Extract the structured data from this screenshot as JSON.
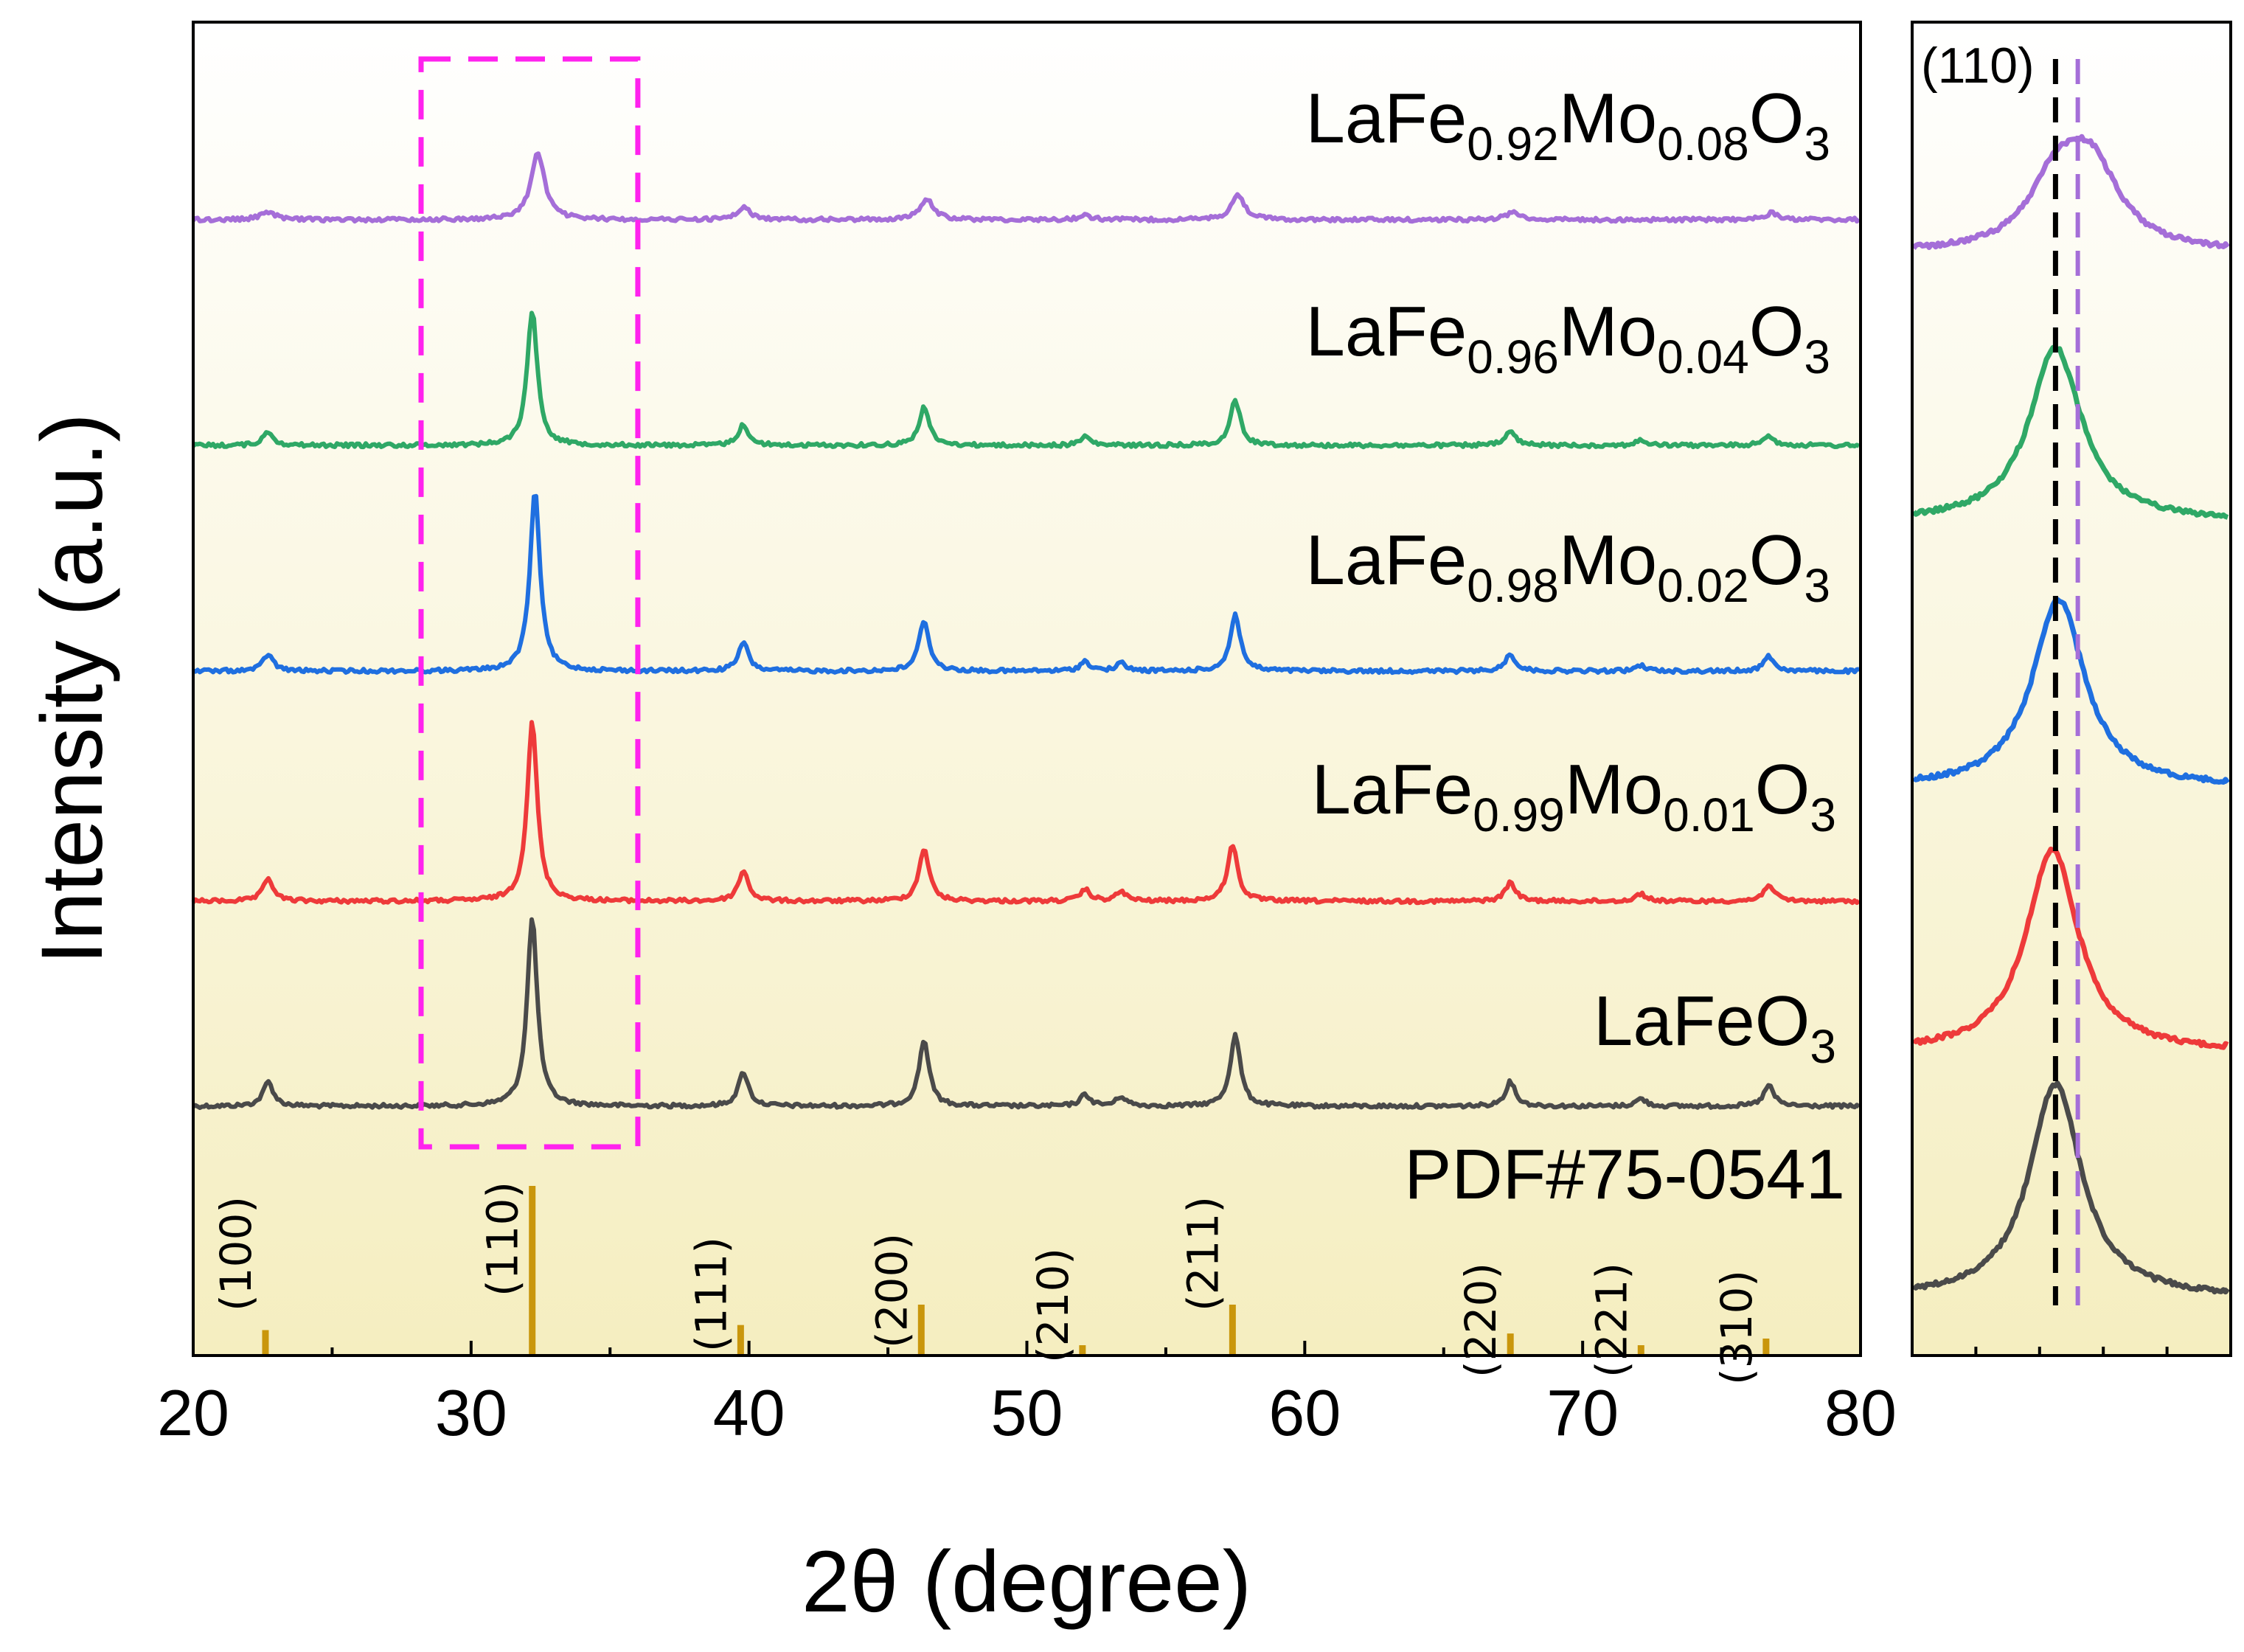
{
  "chart_data": {
    "type": "line",
    "title": "",
    "xlabel": "2θ (degree)",
    "ylabel": "Intensity (a.u.)",
    "xlim": [
      20,
      80
    ],
    "xticks": [
      "20",
      "30",
      "40",
      "50",
      "60",
      "70",
      "80"
    ],
    "series": [
      {
        "name": "LaFeO3",
        "label_main": "LaFeO",
        "label_parts": [
          {
            "t": "LaFeO",
            "sub": false
          },
          {
            "t": "3",
            "sub": true
          }
        ],
        "color": "#4a4a4a",
        "peaks": [
          [
            22.7,
            0.13
          ],
          [
            32.2,
            1.0
          ],
          [
            39.8,
            0.18
          ],
          [
            46.3,
            0.35
          ],
          [
            52.1,
            0.06
          ],
          [
            53.4,
            0.05
          ],
          [
            57.5,
            0.38
          ],
          [
            67.4,
            0.13
          ],
          [
            72.1,
            0.04
          ],
          [
            76.7,
            0.11
          ]
        ],
        "inset_peak": 32.2
      },
      {
        "name": "LaFe0.99Mo0.01O3",
        "label_parts": [
          {
            "t": "LaFe",
            "sub": false
          },
          {
            "t": "0.99",
            "sub": true
          },
          {
            "t": "Mo",
            "sub": false
          },
          {
            "t": "0.01",
            "sub": true
          },
          {
            "t": "O",
            "sub": false
          },
          {
            "t": "3",
            "sub": true
          }
        ],
        "color": "#ee3a3a",
        "peaks": [
          [
            22.7,
            0.12
          ],
          [
            32.2,
            0.95
          ],
          [
            39.8,
            0.16
          ],
          [
            46.3,
            0.28
          ],
          [
            52.1,
            0.06
          ],
          [
            53.4,
            0.05
          ],
          [
            57.4,
            0.3
          ],
          [
            67.4,
            0.1
          ],
          [
            72.1,
            0.04
          ],
          [
            76.7,
            0.09
          ]
        ],
        "inset_peak": 32.18
      },
      {
        "name": "LaFe0.98Mo0.02O3",
        "label_parts": [
          {
            "t": "LaFe",
            "sub": false
          },
          {
            "t": "0.98",
            "sub": true
          },
          {
            "t": "Mo",
            "sub": false
          },
          {
            "t": "0.02",
            "sub": true
          },
          {
            "t": "O",
            "sub": false
          },
          {
            "t": "3",
            "sub": true
          }
        ],
        "color": "#1f6fe0",
        "peaks": [
          [
            22.7,
            0.09
          ],
          [
            32.3,
            0.95
          ],
          [
            39.8,
            0.15
          ],
          [
            46.3,
            0.27
          ],
          [
            52.1,
            0.05
          ],
          [
            53.4,
            0.04
          ],
          [
            57.5,
            0.3
          ],
          [
            67.4,
            0.09
          ],
          [
            72.1,
            0.03
          ],
          [
            76.7,
            0.08
          ]
        ],
        "inset_peak": 32.22
      },
      {
        "name": "LaFe0.96Mo0.04O3",
        "label_parts": [
          {
            "t": "LaFe",
            "sub": false
          },
          {
            "t": "0.96",
            "sub": true
          },
          {
            "t": "Mo",
            "sub": false
          },
          {
            "t": "0.04",
            "sub": true
          },
          {
            "t": "O",
            "sub": false
          },
          {
            "t": "3",
            "sub": true
          }
        ],
        "color": "#2fa866",
        "peaks": [
          [
            22.7,
            0.08
          ],
          [
            32.2,
            0.78
          ],
          [
            39.8,
            0.12
          ],
          [
            46.3,
            0.22
          ],
          [
            52.1,
            0.05
          ],
          [
            57.5,
            0.26
          ],
          [
            67.4,
            0.08
          ],
          [
            72.1,
            0.03
          ],
          [
            76.7,
            0.06
          ]
        ],
        "inset_peak": 32.2
      },
      {
        "name": "LaFe0.92Mo0.08O3",
        "label_parts": [
          {
            "t": "LaFe",
            "sub": false
          },
          {
            "t": "0.92",
            "sub": true
          },
          {
            "t": "Mo",
            "sub": false
          },
          {
            "t": "0.08",
            "sub": true
          },
          {
            "t": "O",
            "sub": false
          },
          {
            "t": "3",
            "sub": true
          }
        ],
        "color": "#a56ed8",
        "peaks": [
          [
            22.7,
            0.06
          ],
          [
            32.4,
            0.5
          ],
          [
            39.8,
            0.09
          ],
          [
            46.4,
            0.15
          ],
          [
            52.1,
            0.03
          ],
          [
            57.6,
            0.18
          ],
          [
            67.5,
            0.06
          ],
          [
            76.8,
            0.05
          ]
        ],
        "inset_peak": 32.32
      }
    ],
    "reference": {
      "name": "PDF#75-0541",
      "color": "#c9960c",
      "lines": [
        {
          "x": 22.6,
          "rel": 0.15,
          "hkl": "(100)"
        },
        {
          "x": 32.2,
          "rel": 1.0,
          "hkl": "(110)"
        },
        {
          "x": 39.7,
          "rel": 0.18,
          "hkl": "(111)"
        },
        {
          "x": 46.2,
          "rel": 0.3,
          "hkl": "(200)"
        },
        {
          "x": 52.0,
          "rel": 0.06,
          "hkl": "(210)"
        },
        {
          "x": 57.4,
          "rel": 0.3,
          "hkl": "(211)"
        },
        {
          "x": 67.4,
          "rel": 0.13,
          "hkl": "(220)"
        },
        {
          "x": 72.1,
          "rel": 0.03,
          "hkl": "(221)"
        },
        {
          "x": 76.6,
          "rel": 0.1,
          "hkl": "(310)"
        }
      ]
    },
    "highlight_box": {
      "x_range": [
        28.2,
        36.0
      ],
      "color": "#ff22ee"
    },
    "inset": {
      "label": "(110)",
      "x_range": [
        31.3,
        33.3
      ],
      "ref_line_x": 32.2,
      "ref_line_color": "#000000",
      "shift_line_x": 32.34,
      "shift_line_color": "#a56ed8"
    },
    "background_gradient": {
      "top": "#ffffff",
      "bottom": "#f5eec0"
    }
  }
}
